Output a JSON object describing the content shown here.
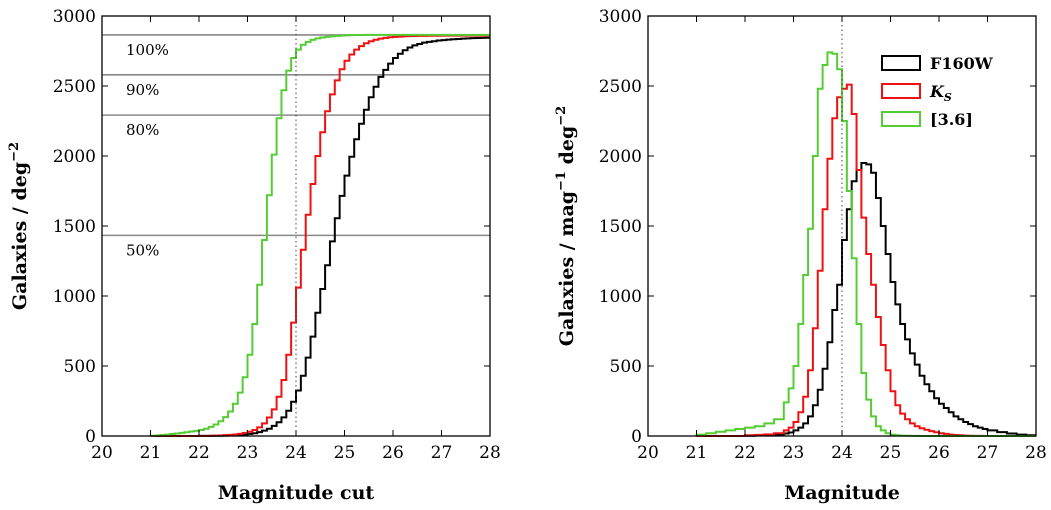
{
  "chart_data": [
    {
      "type": "line",
      "xlabel": "Magnitude cut",
      "ylabel": "Galaxies / deg",
      "ylabel_sup": "−2",
      "xlim": [
        20,
        28
      ],
      "ylim": [
        0,
        3000
      ],
      "xticks": [
        "20",
        "21",
        "22",
        "23",
        "24",
        "25",
        "26",
        "27",
        "28"
      ],
      "yticks": [
        "0",
        "500",
        "1000",
        "1500",
        "2000",
        "2500",
        "3000"
      ],
      "grid": false,
      "vline": 24,
      "hlines": [
        {
          "label": "100%",
          "y": 2865
        },
        {
          "label": "90%",
          "y": 2580
        },
        {
          "label": "80%",
          "y": 2292
        },
        {
          "label": "50%",
          "y": 1433
        }
      ],
      "x": [
        21.0,
        21.1,
        21.2,
        21.3,
        21.4,
        21.5,
        21.6,
        21.7,
        21.8,
        21.9,
        22.0,
        22.1,
        22.2,
        22.3,
        22.4,
        22.5,
        22.6,
        22.7,
        22.8,
        22.9,
        23.0,
        23.1,
        23.2,
        23.3,
        23.4,
        23.5,
        23.6,
        23.7,
        23.8,
        23.9,
        24.0,
        24.1,
        24.2,
        24.3,
        24.4,
        24.5,
        24.6,
        24.7,
        24.8,
        24.9,
        25.0,
        25.1,
        25.2,
        25.3,
        25.4,
        25.5,
        25.6,
        25.7,
        25.8,
        25.9,
        26.0,
        26.1,
        26.2,
        26.3,
        26.4,
        26.5,
        26.6,
        26.7,
        26.8,
        26.9,
        27.0,
        27.1,
        27.2,
        27.3,
        27.4,
        27.5,
        27.6,
        27.7,
        27.8,
        27.9
      ],
      "colors": {
        "F160W": "#000000",
        "K_S": "#ee1111",
        "[3.6]": "#55cc33"
      },
      "series": [
        {
          "name": "F160W",
          "color": "#000000",
          "values": [
            0,
            0,
            0,
            0,
            0,
            0,
            0,
            0,
            0,
            0,
            1,
            1,
            1,
            2,
            2,
            3,
            5,
            6,
            8,
            11,
            15,
            20,
            28,
            38,
            52,
            72,
            98,
            133,
            180,
            245,
            325,
            430,
            560,
            710,
            880,
            1050,
            1220,
            1390,
            1555,
            1715,
            1860,
            1995,
            2120,
            2230,
            2330,
            2420,
            2495,
            2565,
            2615,
            2660,
            2700,
            2730,
            2755,
            2775,
            2790,
            2800,
            2810,
            2815,
            2820,
            2825,
            2828,
            2831,
            2834,
            2836,
            2838,
            2840,
            2842,
            2843,
            2844,
            2845
          ]
        },
        {
          "name": "K_S",
          "color": "#ee1111",
          "values": [
            0,
            0,
            0,
            0,
            0,
            0,
            0,
            0,
            0,
            0,
            1,
            1,
            2,
            3,
            4,
            6,
            8,
            11,
            15,
            21,
            30,
            43,
            62,
            90,
            132,
            190,
            280,
            400,
            580,
            810,
            1060,
            1330,
            1580,
            1800,
            2000,
            2170,
            2320,
            2440,
            2540,
            2620,
            2680,
            2725,
            2760,
            2785,
            2805,
            2820,
            2830,
            2838,
            2844,
            2848,
            2851,
            2853,
            2855,
            2856,
            2857,
            2858,
            2858,
            2859,
            2859,
            2859,
            2860,
            2860,
            2860,
            2860,
            2860,
            2860,
            2860,
            2860,
            2860,
            2860
          ]
        },
        {
          "name": "[3.6]",
          "color": "#55cc33",
          "values": [
            2,
            4,
            7,
            10,
            14,
            18,
            22,
            27,
            32,
            37,
            43,
            52,
            65,
            82,
            105,
            135,
            175,
            230,
            310,
            420,
            580,
            800,
            1080,
            1400,
            1720,
            2010,
            2270,
            2470,
            2610,
            2700,
            2760,
            2795,
            2815,
            2830,
            2840,
            2846,
            2851,
            2855,
            2858,
            2860,
            2862,
            2863,
            2864,
            2864,
            2865,
            2865,
            2865,
            2865,
            2865,
            2865,
            2865,
            2865,
            2865,
            2865,
            2865,
            2865,
            2865,
            2865,
            2865,
            2865,
            2865,
            2865,
            2865,
            2865,
            2865,
            2865,
            2865,
            2865,
            2865,
            2865
          ]
        }
      ]
    },
    {
      "type": "line",
      "xlabel": "Magnitude",
      "ylabel": "Galaxies / mag",
      "ylabel_sup1": "−1",
      "ylabel_mid": " deg",
      "ylabel_sup2": "−2",
      "xlim": [
        20,
        28
      ],
      "ylim": [
        0,
        3000
      ],
      "xticks": [
        "20",
        "21",
        "22",
        "23",
        "24",
        "25",
        "26",
        "27",
        "28"
      ],
      "yticks": [
        "0",
        "500",
        "1000",
        "1500",
        "2000",
        "2500",
        "3000"
      ],
      "grid": false,
      "vline": 24,
      "legend_position": "top-right",
      "x": [
        21.0,
        21.2,
        21.4,
        21.6,
        21.8,
        22.0,
        22.2,
        22.4,
        22.6,
        22.8,
        22.9,
        23.0,
        23.1,
        23.2,
        23.3,
        23.4,
        23.5,
        23.6,
        23.7,
        23.8,
        23.9,
        24.0,
        24.1,
        24.2,
        24.3,
        24.4,
        24.5,
        24.6,
        24.7,
        24.8,
        24.9,
        25.0,
        25.1,
        25.2,
        25.3,
        25.4,
        25.5,
        25.6,
        25.7,
        25.8,
        25.9,
        26.0,
        26.1,
        26.2,
        26.3,
        26.4,
        26.5,
        26.6,
        26.7,
        26.8,
        26.9,
        27.0,
        27.2,
        27.4,
        27.6,
        27.8
      ],
      "series": [
        {
          "name": "F160W",
          "label_text": "F160W",
          "color": "#000000",
          "values": [
            0,
            0,
            0,
            0,
            0,
            2,
            4,
            6,
            10,
            18,
            25,
            40,
            60,
            90,
            140,
            220,
            330,
            480,
            670,
            900,
            1080,
            1400,
            1620,
            1820,
            1900,
            1950,
            1940,
            1880,
            1700,
            1500,
            1300,
            1100,
            940,
            800,
            690,
            590,
            510,
            430,
            370,
            320,
            270,
            230,
            200,
            170,
            140,
            120,
            100,
            85,
            70,
            60,
            50,
            40,
            28,
            18,
            10,
            5
          ]
        },
        {
          "name": "K_S",
          "label_base": "K",
          "label_sub": "S",
          "color": "#ee1111",
          "values": [
            0,
            0,
            0,
            0,
            0,
            5,
            8,
            12,
            20,
            40,
            60,
            100,
            170,
            280,
            470,
            770,
            1180,
            1620,
            1980,
            2270,
            2420,
            2480,
            2510,
            2300,
            1900,
            1560,
            1300,
            1080,
            850,
            650,
            470,
            320,
            220,
            160,
            120,
            90,
            70,
            55,
            45,
            35,
            27,
            20,
            15,
            10,
            7,
            5,
            3,
            2,
            1,
            1,
            0,
            0,
            0,
            0,
            0,
            0
          ]
        },
        {
          "name": "[3.6]",
          "label_text": "[3.6]",
          "color": "#55cc33",
          "values": [
            10,
            20,
            30,
            40,
            50,
            60,
            70,
            90,
            120,
            240,
            340,
            500,
            800,
            1150,
            1480,
            2000,
            2480,
            2650,
            2740,
            2730,
            2620,
            2250,
            1750,
            1270,
            800,
            450,
            260,
            140,
            70,
            40,
            20,
            10,
            5,
            3,
            2,
            1,
            1,
            0,
            0,
            0,
            0,
            0,
            0,
            0,
            0,
            0,
            0,
            0,
            0,
            0,
            0,
            0,
            0,
            0,
            0,
            0
          ]
        }
      ]
    }
  ]
}
